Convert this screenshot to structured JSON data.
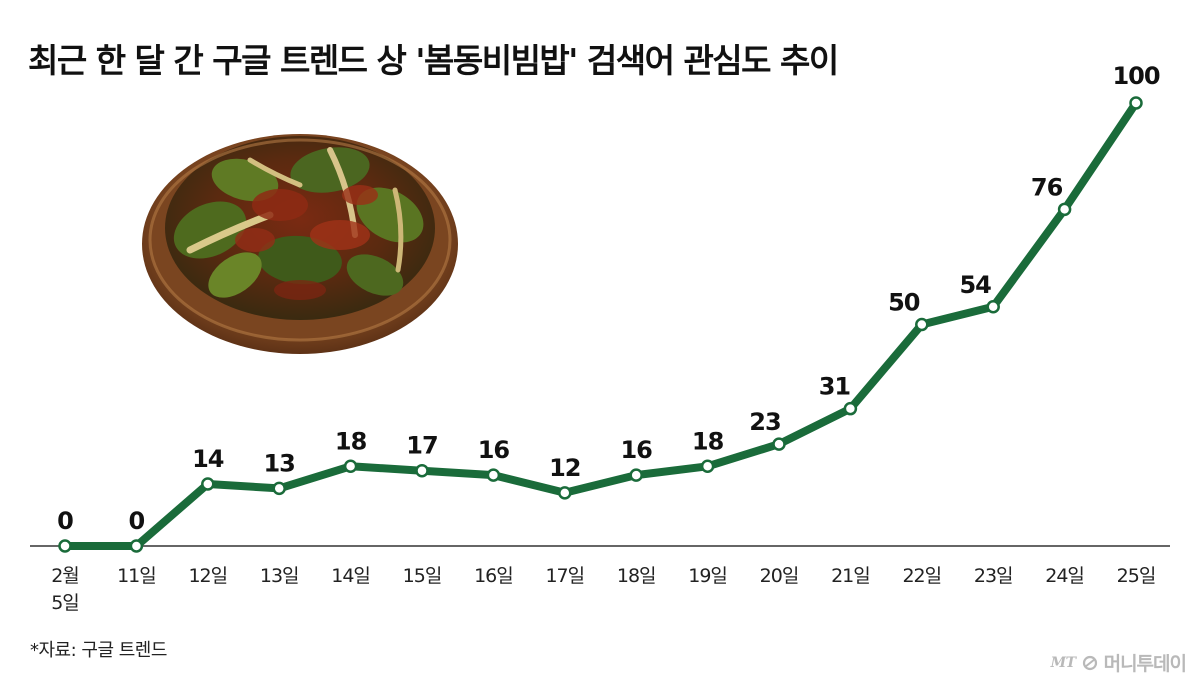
{
  "title": "최근 한 달 간 구글 트렌드 상 '봄동비빔밥' 검색어 관심도 추이",
  "source": "*자료: 구글 트렌드",
  "watermark": {
    "mark": "MT",
    "text": "머니투데이"
  },
  "colors": {
    "line": "#1a6b3a",
    "marker_fill": "#ffffff",
    "axis": "#333333",
    "watermark": "#b9b9b9"
  },
  "chart_data": {
    "type": "line",
    "categories": [
      [
        "2월",
        "5일"
      ],
      [
        "11일"
      ],
      [
        "12일"
      ],
      [
        "13일"
      ],
      [
        "14일"
      ],
      [
        "15일"
      ],
      [
        "16일"
      ],
      [
        "17일"
      ],
      [
        "18일"
      ],
      [
        "19일"
      ],
      [
        "20일"
      ],
      [
        "21일"
      ],
      [
        "22일"
      ],
      [
        "23일"
      ],
      [
        "24일"
      ],
      [
        "25일"
      ]
    ],
    "values": [
      0,
      0,
      14,
      13,
      18,
      17,
      16,
      12,
      16,
      18,
      23,
      31,
      50,
      54,
      76,
      100
    ],
    "ylim": [
      0,
      100
    ],
    "grid": false,
    "legend": "none",
    "markers": "hollow-circle"
  },
  "image": {
    "name": "bomdong-bibimbap-bowl-photo"
  }
}
